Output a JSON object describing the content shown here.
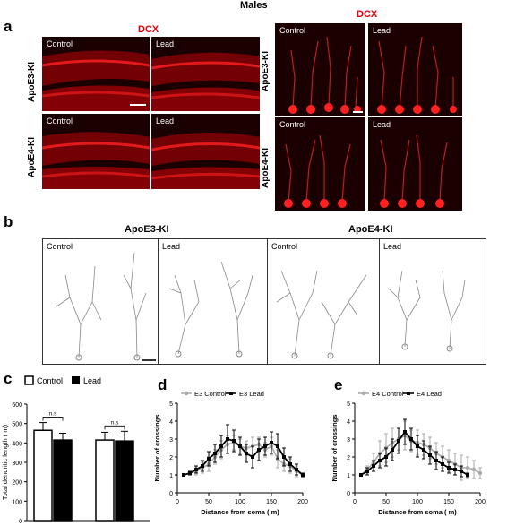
{
  "figure": {
    "header": "Males",
    "panel_a_letter": "a",
    "panel_b_letter": "b",
    "panel_c_letter": "c",
    "panel_d_letter": "d",
    "panel_e_letter": "e",
    "stain_label": "DCX",
    "control_label": "Control",
    "lead_label": "Lead",
    "apoe3_label": "ApoE3-KI",
    "apoe4_label": "ApoE4-KI"
  },
  "colors": {
    "tissue_bg": "#1a0000",
    "stain": "#e8000b",
    "control_series": "#aaaaaa",
    "lead_series": "#000000"
  },
  "chart_data": [
    {
      "id": "c",
      "type": "bar",
      "ylabel": "Total dendritic length (  m)",
      "ylim": [
        0,
        600
      ],
      "yticks": [
        0,
        100,
        200,
        300,
        400,
        500,
        600
      ],
      "categories": [
        "ApoE3-KI",
        "ApoE4-KI"
      ],
      "series": [
        {
          "name": "Control",
          "values": [
            465,
            415
          ],
          "errors": [
            40,
            40
          ]
        },
        {
          "name": "Lead",
          "values": [
            415,
            410
          ],
          "errors": [
            35,
            50
          ]
        }
      ],
      "annotations": [
        "n.s",
        "n.s"
      ],
      "legend": "top"
    },
    {
      "id": "d",
      "type": "line",
      "xlabel": "Distance from soma (  m)",
      "ylabel": "Number of crossings",
      "xlim": [
        0,
        200
      ],
      "ylim": [
        0,
        5
      ],
      "xticks": [
        0,
        50,
        100,
        150,
        200
      ],
      "yticks": [
        0,
        1,
        2,
        3,
        4,
        5
      ],
      "legend": "top-left",
      "series": [
        {
          "name": "E3 Control",
          "color": "#aaaaaa",
          "x": [
            10,
            20,
            30,
            40,
            50,
            60,
            70,
            80,
            90,
            100,
            110,
            120,
            130,
            140,
            150,
            160,
            170,
            180,
            190,
            200
          ],
          "y": [
            1.0,
            1.1,
            1.2,
            1.4,
            1.6,
            2.0,
            2.4,
            2.7,
            2.8,
            2.6,
            2.5,
            2.6,
            2.7,
            2.4,
            2.6,
            1.9,
            1.6,
            1.5,
            1.2,
            1.0
          ],
          "err": [
            0.05,
            0.1,
            0.2,
            0.3,
            0.4,
            0.4,
            0.5,
            0.5,
            0.4,
            0.4,
            0.4,
            0.5,
            0.4,
            0.4,
            0.5,
            0.5,
            0.4,
            0.4,
            0.3,
            0.1
          ]
        },
        {
          "name": "E3 Lead",
          "color": "#000000",
          "x": [
            10,
            20,
            30,
            40,
            50,
            60,
            70,
            80,
            90,
            100,
            110,
            120,
            130,
            140,
            150,
            160,
            170,
            180,
            190,
            200
          ],
          "y": [
            1.0,
            1.1,
            1.3,
            1.5,
            1.9,
            2.2,
            2.6,
            3.0,
            2.9,
            2.6,
            2.2,
            2.0,
            2.4,
            2.6,
            2.8,
            2.6,
            2.0,
            1.6,
            1.3,
            1.0
          ],
          "err": [
            0.05,
            0.1,
            0.2,
            0.3,
            0.4,
            0.5,
            0.6,
            0.8,
            0.6,
            0.5,
            0.5,
            0.6,
            0.6,
            0.5,
            0.6,
            0.7,
            0.5,
            0.4,
            0.3,
            0.1
          ]
        }
      ]
    },
    {
      "id": "e",
      "type": "line",
      "xlabel": "Distance from soma (  m)",
      "ylabel": "Number of crossings",
      "xlim": [
        0,
        200
      ],
      "ylim": [
        0,
        5
      ],
      "xticks": [
        0,
        50,
        100,
        150,
        200
      ],
      "yticks": [
        0,
        1,
        2,
        3,
        4,
        5
      ],
      "legend": "top-left",
      "series": [
        {
          "name": "E4 Control",
          "color": "#aaaaaa",
          "x": [
            10,
            20,
            30,
            40,
            50,
            60,
            70,
            80,
            90,
            100,
            110,
            120,
            130,
            140,
            150,
            160,
            170,
            180,
            190,
            200
          ],
          "y": [
            1.0,
            1.3,
            1.7,
            2.2,
            2.5,
            2.8,
            3.0,
            3.2,
            2.9,
            2.8,
            2.7,
            2.5,
            2.2,
            2.0,
            1.8,
            1.6,
            1.4,
            1.4,
            1.3,
            1.1
          ],
          "err": [
            0.05,
            0.2,
            0.5,
            0.7,
            0.8,
            0.8,
            0.6,
            0.8,
            0.6,
            0.7,
            0.6,
            0.6,
            0.6,
            0.6,
            0.6,
            0.6,
            0.7,
            0.6,
            0.5,
            0.3
          ]
        },
        {
          "name": "E4 Lead",
          "color": "#000000",
          "x": [
            10,
            20,
            30,
            40,
            50,
            60,
            70,
            80,
            90,
            100,
            110,
            120,
            130,
            140,
            150,
            160,
            170,
            180
          ],
          "y": [
            1.0,
            1.2,
            1.5,
            1.8,
            2.0,
            2.4,
            2.9,
            3.4,
            3.0,
            2.6,
            2.4,
            2.1,
            1.8,
            1.6,
            1.4,
            1.3,
            1.2,
            1.0
          ],
          "err": [
            0.05,
            0.2,
            0.3,
            0.4,
            0.5,
            0.6,
            0.7,
            0.7,
            0.6,
            0.6,
            0.5,
            0.5,
            0.5,
            0.4,
            0.3,
            0.3,
            0.3,
            0.1
          ]
        }
      ]
    }
  ]
}
